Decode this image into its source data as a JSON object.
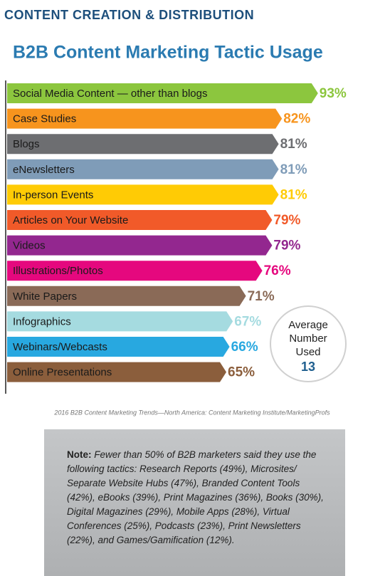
{
  "header": "CONTENT CREATION & DISTRIBUTION",
  "chart_data": {
    "type": "bar",
    "orientation": "horizontal",
    "title": "B2B Content Marketing Tactic Usage",
    "categories": [
      "Social Media Content — other than blogs",
      "Case Studies",
      "Blogs",
      "eNewsletters",
      "In-person Events",
      "Articles on Your Website",
      "Videos",
      "Illustrations/Photos",
      "White Papers",
      "Infographics",
      "Webinars/Webcasts",
      "Online Presentations"
    ],
    "values": [
      93,
      82,
      81,
      81,
      81,
      79,
      79,
      76,
      71,
      67,
      66,
      65
    ],
    "value_labels": [
      "93%",
      "82%",
      "81%",
      "81%",
      "81%",
      "79%",
      "79%",
      "76%",
      "71%",
      "67%",
      "66%",
      "65%"
    ],
    "colors": [
      "#8cc63e",
      "#f7941d",
      "#6d6e71",
      "#7f9cb8",
      "#ffcb05",
      "#f15a29",
      "#93278f",
      "#e5087e",
      "#8a6a57",
      "#a5dbe0",
      "#28a8e0",
      "#8b5e3c"
    ],
    "xlim": [
      0,
      100
    ],
    "annotation": {
      "lines": [
        "Average",
        "Number",
        "Used"
      ],
      "value": 13
    },
    "source": "2016 B2B Content Marketing Trends—North America: Content Marketing Institute/MarketingProfs"
  },
  "note": {
    "label": "Note:",
    "text": "Fewer than 50% of B2B marketers said they use the following tactics: Research Reports (49%), Microsites/ Separate Website Hubs (47%), Branded Content Tools (42%), eBooks (39%), Print Magazines (36%), Books (30%), Digital Magazines (29%), Mobile Apps (28%), Virtual Conferences (25%), Podcasts (23%), Print Newsletters (22%), and Games/Gamification (12%)."
  }
}
